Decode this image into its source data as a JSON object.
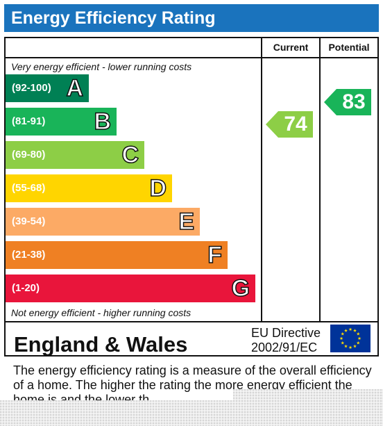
{
  "header": {
    "title": "Energy Efficiency Rating"
  },
  "columns": {
    "current": "Current",
    "potential": "Potential"
  },
  "notes": {
    "top": "Very energy efficient - lower running costs",
    "bottom": "Not energy efficient - higher running costs"
  },
  "chart_data": {
    "type": "bar",
    "title": "Energy Efficiency Rating",
    "categories": [
      "A",
      "B",
      "C",
      "D",
      "E",
      "F",
      "G"
    ],
    "ranges": [
      "(92-100)",
      "(81-91)",
      "(69-80)",
      "(55-68)",
      "(39-54)",
      "(21-38)",
      "(1-20)"
    ],
    "colors": [
      "#008054",
      "#19b459",
      "#8dce46",
      "#ffd500",
      "#fcaa65",
      "#ef8023",
      "#e9153b"
    ],
    "current": {
      "label": "Current",
      "value": 74,
      "band": "C",
      "color": "#8dce46"
    },
    "potential": {
      "label": "Potential",
      "value": 83,
      "band": "B",
      "color": "#19b459"
    }
  },
  "footer": {
    "region": "England & Wales",
    "directive_line1": "EU Directive",
    "directive_line2": "2002/91/EC"
  },
  "description": {
    "text": "The energy efficiency rating is a measure of the overall efficiency of a home.  The higher the rating the more energy efficient the home is and the lower th"
  }
}
